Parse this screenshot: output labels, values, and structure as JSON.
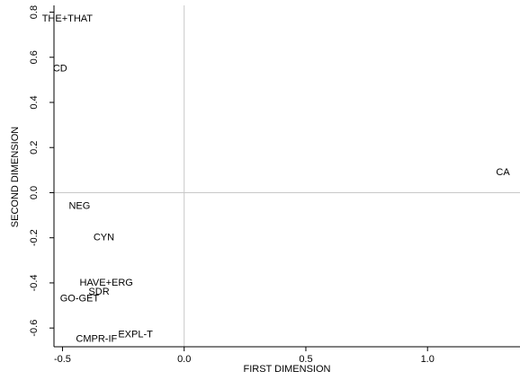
{
  "chart_data": {
    "type": "scatter",
    "xlabel": "FIRST DIMENSION",
    "ylabel": "SECOND DIMENSION",
    "xlim": [
      -0.535,
      1.38
    ],
    "ylim": [
      -0.683,
      0.83
    ],
    "x_ticks": [
      -0.5,
      0.0,
      0.5,
      1.0
    ],
    "x_tick_labels": [
      "-0.5",
      "0.0",
      "0.5",
      "1.0"
    ],
    "y_ticks": [
      -0.6,
      -0.4,
      -0.2,
      0.0,
      0.2,
      0.4,
      0.6,
      0.8
    ],
    "y_tick_labels": [
      "-0.6",
      "-0.4",
      "-0.2",
      "0.0",
      "0.2",
      "0.4",
      "0.6",
      "0.8"
    ],
    "reference_lines": {
      "x": 0,
      "y": 0
    },
    "grid": false,
    "points": [
      {
        "label": "THE+THAT",
        "x": -0.48,
        "y": 0.77
      },
      {
        "label": "CD",
        "x": -0.51,
        "y": 0.55
      },
      {
        "label": "CA",
        "x": 1.31,
        "y": 0.09
      },
      {
        "label": "NEG",
        "x": -0.43,
        "y": -0.06
      },
      {
        "label": "CYN",
        "x": -0.33,
        "y": -0.2
      },
      {
        "label": "HAVE+ERG",
        "x": -0.32,
        "y": -0.4
      },
      {
        "label": "SDR",
        "x": -0.35,
        "y": -0.44
      },
      {
        "label": "GO-GET",
        "x": -0.43,
        "y": -0.47
      },
      {
        "label": "EXPL-T",
        "x": -0.2,
        "y": -0.63
      },
      {
        "label": "CMPR-IF",
        "x": -0.36,
        "y": -0.65
      }
    ]
  }
}
